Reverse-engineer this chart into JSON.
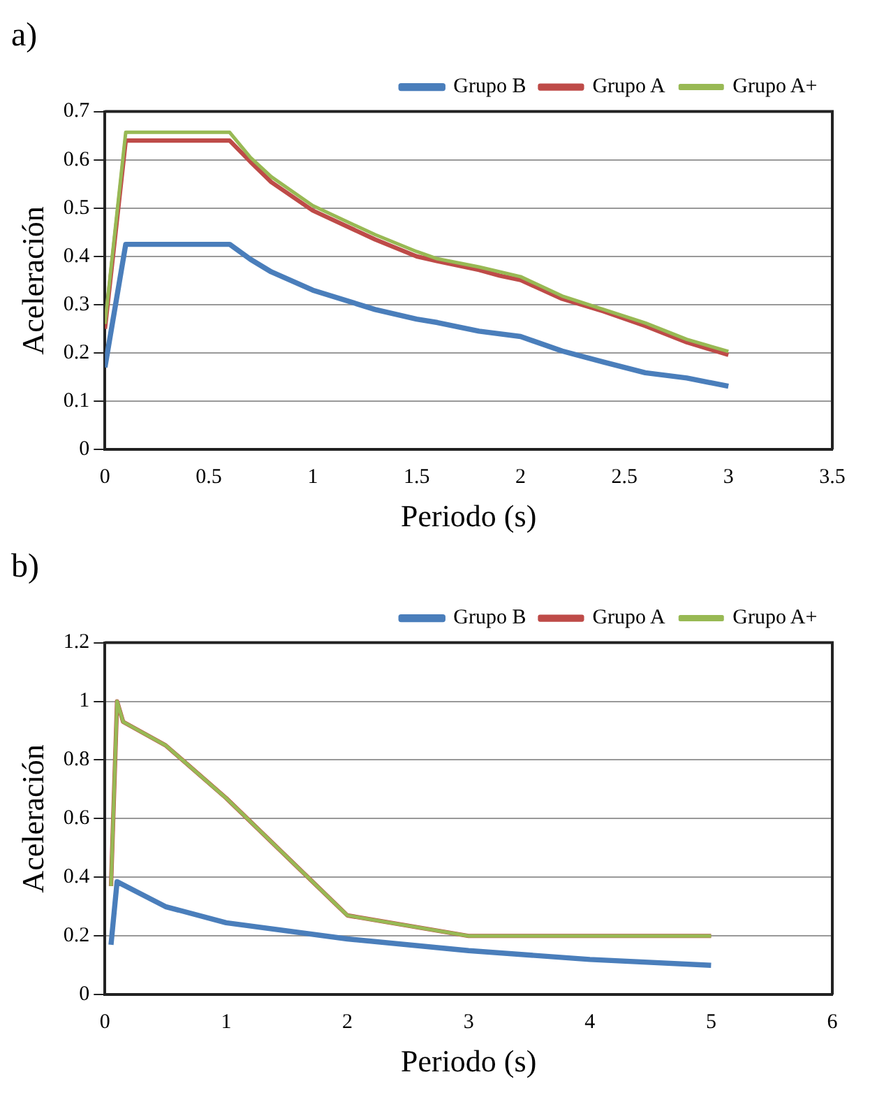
{
  "chart_data": [
    {
      "type": "line",
      "title": "a)",
      "xlabel": "Periodo (s)",
      "ylabel": "Aceleración",
      "xlim": [
        0,
        3.5
      ],
      "xticks": [
        0,
        0.5,
        1,
        1.5,
        2,
        2.5,
        3,
        3.5
      ],
      "ylim": [
        0,
        0.7
      ],
      "yticks": [
        0,
        0.1,
        0.2,
        0.3,
        0.4,
        0.5,
        0.6,
        0.7
      ],
      "grid": "y",
      "legend": "top right",
      "marker": "none",
      "line_style": "solid",
      "series": [
        {
          "name": "Grupo B",
          "color": "#4a7ebb",
          "x": [
            0,
            0.1,
            0.6,
            0.7,
            0.8,
            1.0,
            1.3,
            1.5,
            1.6,
            1.8,
            2.0,
            2.2,
            2.4,
            2.6,
            2.8,
            3.0
          ],
          "values": [
            0.17,
            0.425,
            0.425,
            0.394,
            0.368,
            0.33,
            0.29,
            0.27,
            0.263,
            0.245,
            0.234,
            0.204,
            0.181,
            0.159,
            0.148,
            0.131
          ]
        },
        {
          "name": "Grupo A",
          "color": "#be4b48",
          "x": [
            0,
            0.1,
            0.6,
            0.7,
            0.8,
            1.0,
            1.3,
            1.5,
            1.6,
            1.8,
            1.9,
            2.0,
            2.2,
            2.4,
            2.6,
            2.8,
            3.0
          ],
          "values": [
            0.25,
            0.64,
            0.64,
            0.596,
            0.554,
            0.495,
            0.435,
            0.4,
            0.39,
            0.372,
            0.36,
            0.351,
            0.312,
            0.286,
            0.256,
            0.222,
            0.196
          ]
        },
        {
          "name": "Grupo A+",
          "color": "#98b954",
          "x": [
            0,
            0.1,
            0.6,
            0.7,
            0.8,
            1.0,
            1.3,
            1.5,
            1.6,
            1.8,
            2.0,
            2.2,
            2.4,
            2.6,
            2.8,
            3.0
          ],
          "values": [
            0.26,
            0.657,
            0.657,
            0.605,
            0.565,
            0.505,
            0.445,
            0.41,
            0.395,
            0.378,
            0.358,
            0.318,
            0.29,
            0.262,
            0.228,
            0.203
          ]
        }
      ]
    },
    {
      "type": "line",
      "title": "b)",
      "xlabel": "Periodo (s)",
      "ylabel": "Aceleración",
      "xlim": [
        0,
        6
      ],
      "xticks": [
        0,
        1,
        2,
        3,
        4,
        5,
        6
      ],
      "ylim": [
        0,
        1.2
      ],
      "yticks": [
        0,
        0.2,
        0.4,
        0.6,
        0.8,
        1,
        1.2
      ],
      "grid": "y",
      "legend": "top right",
      "marker": "none",
      "line_style": "solid",
      "series": [
        {
          "name": "Grupo B",
          "color": "#4a7ebb",
          "x": [
            0.05,
            0.1,
            0.5,
            1,
            2,
            3,
            4,
            5
          ],
          "values": [
            0.17,
            0.385,
            0.3,
            0.245,
            0.19,
            0.15,
            0.12,
            0.1
          ]
        },
        {
          "name": "Grupo A",
          "color": "#be4b48",
          "x": [
            0.05,
            0.1,
            0.15,
            0.5,
            1,
            2,
            3,
            5
          ],
          "values": [
            0.37,
            1.0,
            0.93,
            0.85,
            0.67,
            0.27,
            0.2,
            0.2
          ]
        },
        {
          "name": "Grupo A+",
          "color": "#98b954",
          "x": [
            0.05,
            0.1,
            0.15,
            0.5,
            1,
            2,
            3,
            5
          ],
          "values": [
            0.37,
            1.0,
            0.93,
            0.85,
            0.67,
            0.27,
            0.2,
            0.2
          ]
        }
      ]
    }
  ]
}
